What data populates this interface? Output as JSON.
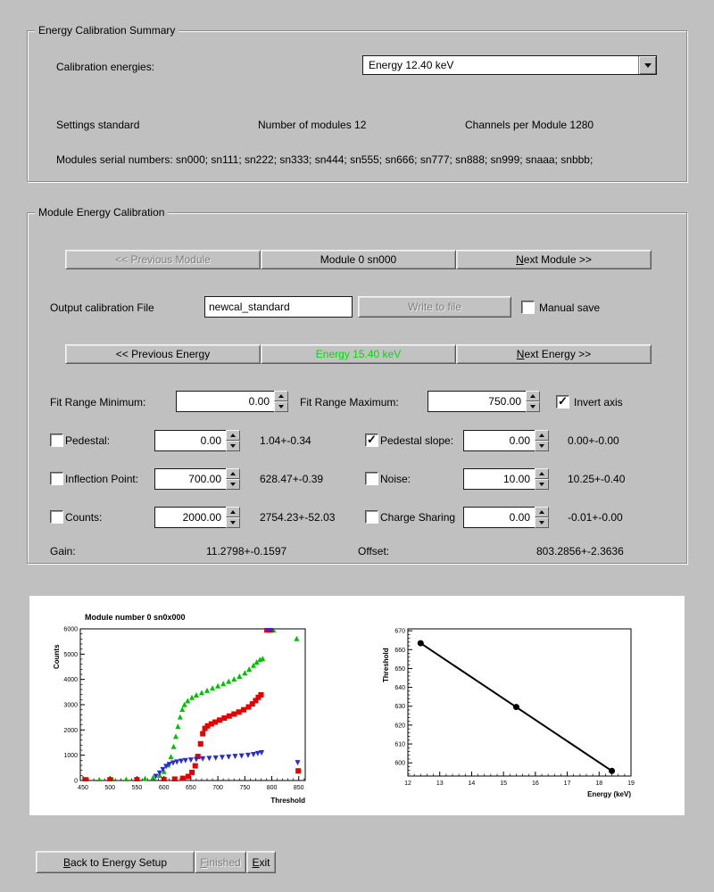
{
  "colors": {
    "window_bg": "#c0c0c0",
    "energy_active_text": "#00dd00",
    "disabled_text": "#7d7d7d",
    "scurve_green": "#00c000",
    "scurve_red": "#e40000",
    "scurve_blue": "#2a2ad4",
    "fit_line": "#000000"
  },
  "summary": {
    "title": "Energy Calibration Summary",
    "calibration_energies_label": "Calibration energies:",
    "energy_value": "Energy 12.40 keV",
    "settings": "Settings standard",
    "num_modules": "Number of modules 12",
    "channels": "Channels per Module 1280",
    "serials": "Modules serial numbers: sn000; sn111; sn222; sn333; sn444; sn555; sn666; sn777; sn888; sn999; snaaa; snbbb;"
  },
  "module_cal": {
    "title": "Module Energy Calibration",
    "prev_module_label": "<< Previous Module",
    "module_label": "Module 0 sn000",
    "next_module_label": "Next Module >>",
    "output_file_label": "Output calibration File",
    "output_file_value": "newcal_standard",
    "write_label": "Write to file",
    "manual_save_label": "Manual save",
    "manual_save_checked": false,
    "prev_energy_label": "<< Previous Energy",
    "energy_label": "Energy 15.40 keV",
    "next_energy_label": "Next Energy >>",
    "fit_min_label": "Fit Range Minimum:",
    "fit_min_value": "0.00",
    "fit_max_label": "Fit Range Maximum:",
    "fit_max_value": "750.00",
    "invert_axis_label": "Invert axis",
    "invert_axis_checked": true,
    "param_rows": [
      {
        "left": {
          "label": "Pedestal:",
          "checked": false,
          "value": "0.00",
          "result": "1.04+-0.34"
        },
        "right": {
          "label": "Pedestal slope:",
          "checked": true,
          "value": "0.00",
          "result": "0.00+-0.00"
        }
      },
      {
        "left": {
          "label": "Inflection Point:",
          "checked": false,
          "value": "700.00",
          "result": "628.47+-0.39"
        },
        "right": {
          "label": "Noise:",
          "checked": false,
          "value": "10.00",
          "result": "10.25+-0.40"
        }
      },
      {
        "left": {
          "label": "Counts:",
          "checked": false,
          "value": "2000.00",
          "result": "2754.23+-52.03"
        },
        "right": {
          "label": "Charge Sharing",
          "checked": false,
          "value": "0.00",
          "result": "-0.01+-0.00"
        }
      }
    ],
    "gain_label": "Gain:",
    "gain_value": "11.2798+-0.1597",
    "offset_label": "Offset:",
    "offset_value": "803.2856+-2.3636"
  },
  "footer": {
    "back_label": "Back to Energy Setup",
    "finished_label": "Finished",
    "exit_label": "Exit"
  },
  "chart_data": [
    {
      "type": "scatter",
      "title": "Module number 0 sn0x000",
      "xlabel": "Threshold",
      "ylabel": "Counts",
      "xlim": [
        445,
        862
      ],
      "ylim": [
        0,
        6000
      ],
      "xticks": [
        450,
        500,
        550,
        600,
        650,
        700,
        750,
        800,
        850
      ],
      "yticks": [
        0,
        1000,
        2000,
        3000,
        4000,
        5000,
        6000
      ],
      "xminor": 5,
      "yminor": 5,
      "grid": false,
      "legend": "none",
      "series": [
        {
          "name": "scurve-green-triangle-up",
          "marker": "triangle-up",
          "color": "#00c000",
          "size": 3,
          "points": [
            [
              455,
              40
            ],
            [
              480,
              40
            ],
            [
              505,
              45
            ],
            [
              530,
              55
            ],
            [
              550,
              65
            ],
            [
              565,
              85
            ],
            [
              580,
              130
            ],
            [
              592,
              210
            ],
            [
              600,
              360
            ],
            [
              607,
              620
            ],
            [
              613,
              950
            ],
            [
              618,
              1350
            ],
            [
              622,
              1750
            ],
            [
              626,
              2150
            ],
            [
              630,
              2520
            ],
            [
              634,
              2820
            ],
            [
              638,
              3010
            ],
            [
              644,
              3160
            ],
            [
              652,
              3290
            ],
            [
              660,
              3390
            ],
            [
              670,
              3480
            ],
            [
              680,
              3570
            ],
            [
              690,
              3660
            ],
            [
              700,
              3750
            ],
            [
              710,
              3840
            ],
            [
              720,
              3930
            ],
            [
              730,
              4020
            ],
            [
              740,
              4130
            ],
            [
              750,
              4260
            ],
            [
              758,
              4410
            ],
            [
              766,
              4560
            ],
            [
              772,
              4690
            ],
            [
              778,
              4790
            ],
            [
              783,
              4830
            ],
            [
              790,
              5960
            ],
            [
              797,
              5960
            ],
            [
              803,
              5960
            ],
            [
              846,
              5620
            ]
          ]
        },
        {
          "name": "scurve-red-square",
          "marker": "square",
          "color": "#e40000",
          "size": 3,
          "points": [
            [
              455,
              25
            ],
            [
              500,
              28
            ],
            [
              550,
              32
            ],
            [
              600,
              40
            ],
            [
              620,
              55
            ],
            [
              635,
              85
            ],
            [
              645,
              160
            ],
            [
              652,
              320
            ],
            [
              658,
              580
            ],
            [
              663,
              950
            ],
            [
              668,
              1450
            ],
            [
              672,
              1850
            ],
            [
              676,
              2060
            ],
            [
              681,
              2160
            ],
            [
              688,
              2240
            ],
            [
              695,
              2310
            ],
            [
              703,
              2390
            ],
            [
              712,
              2470
            ],
            [
              721,
              2550
            ],
            [
              730,
              2630
            ],
            [
              739,
              2710
            ],
            [
              748,
              2800
            ],
            [
              757,
              2910
            ],
            [
              764,
              3030
            ],
            [
              770,
              3160
            ],
            [
              775,
              3290
            ],
            [
              780,
              3390
            ],
            [
              791,
              5960
            ],
            [
              798,
              5960
            ],
            [
              849,
              380
            ]
          ]
        },
        {
          "name": "scurve-blue-triangle-down",
          "marker": "triangle-down",
          "color": "#2a2ad4",
          "size": 3,
          "points": [
            [
              585,
              160
            ],
            [
              592,
              290
            ],
            [
              598,
              430
            ],
            [
              604,
              550
            ],
            [
              610,
              630
            ],
            [
              617,
              690
            ],
            [
              624,
              730
            ],
            [
              632,
              760
            ],
            [
              640,
              785
            ],
            [
              650,
              808
            ],
            [
              660,
              828
            ],
            [
              672,
              850
            ],
            [
              684,
              868
            ],
            [
              696,
              888
            ],
            [
              708,
              908
            ],
            [
              720,
              928
            ],
            [
              732,
              948
            ],
            [
              744,
              968
            ],
            [
              756,
              992
            ],
            [
              766,
              1022
            ],
            [
              774,
              1062
            ],
            [
              781,
              1095
            ],
            [
              792,
              5960
            ],
            [
              799,
              5960
            ],
            [
              848,
              700
            ]
          ]
        }
      ]
    },
    {
      "type": "line",
      "title": "",
      "xlabel": "Energy (keV)",
      "ylabel": "Threshold",
      "xlim": [
        12,
        19
      ],
      "ylim": [
        593,
        671
      ],
      "xticks": [
        12,
        13,
        14,
        15,
        16,
        17,
        18,
        19
      ],
      "yticks": [
        600,
        610,
        620,
        630,
        640,
        650,
        660,
        670
      ],
      "xminor": 5,
      "yminor": 5,
      "grid": false,
      "legend": "none",
      "series": [
        {
          "name": "calibration-fit-line",
          "line": true,
          "color": "#000000",
          "width": 2,
          "points": [
            [
              12.4,
              663.4
            ],
            [
              18.4,
              595.7
            ]
          ]
        },
        {
          "name": "calibration-points",
          "marker": "circle",
          "color": "#000000",
          "size": 3.5,
          "points": [
            [
              12.4,
              663.4
            ],
            [
              15.4,
              629.6
            ],
            [
              18.4,
              595.7
            ]
          ]
        }
      ]
    }
  ]
}
